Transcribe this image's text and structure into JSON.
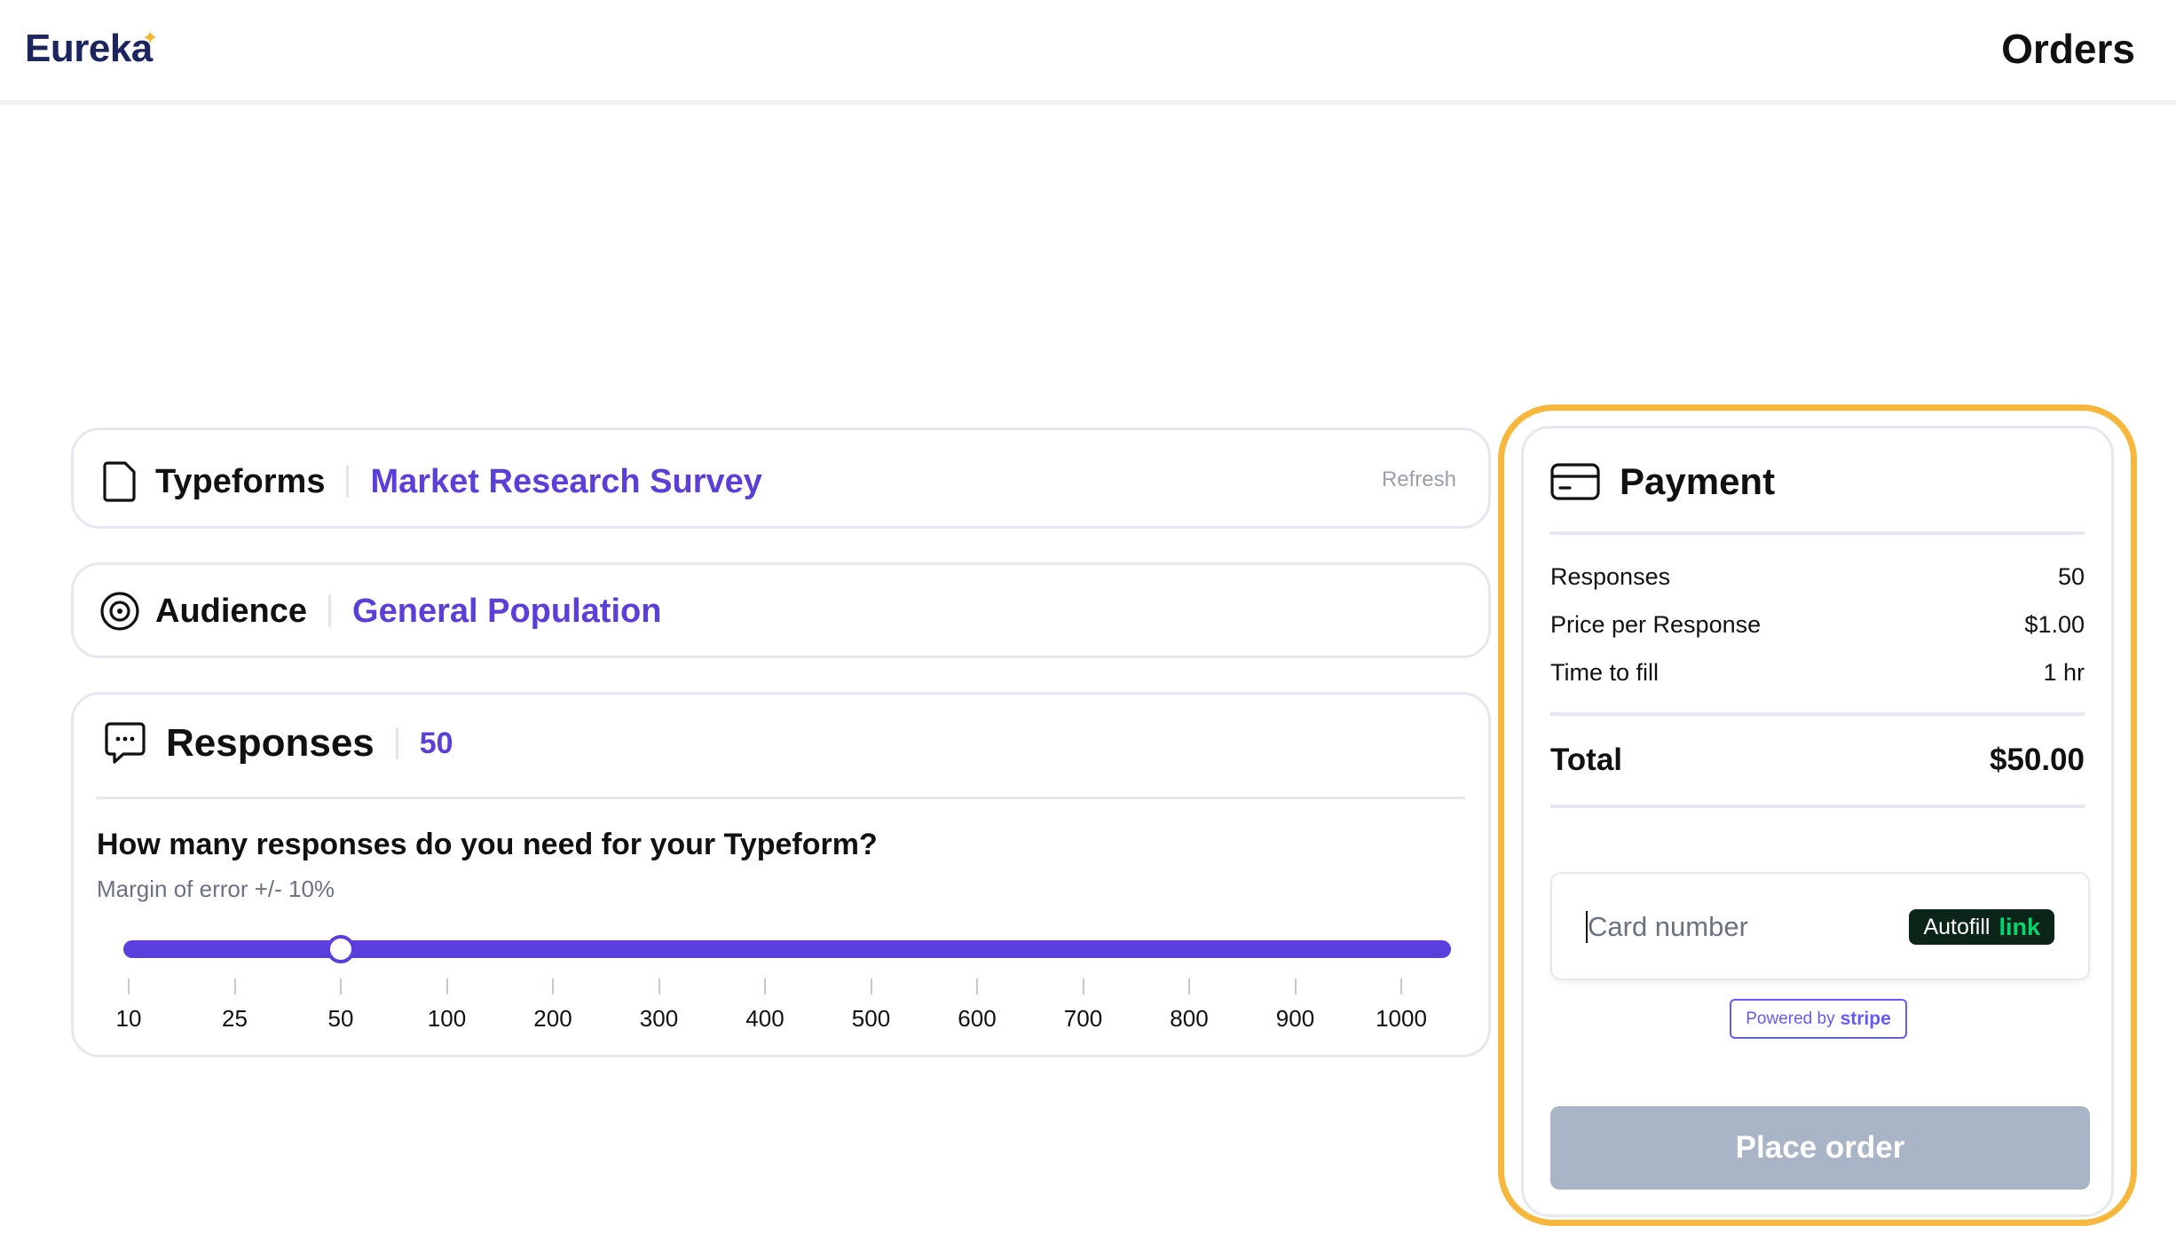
{
  "header": {
    "logo_text": "Eureka",
    "page_title": "Orders"
  },
  "typeforms": {
    "label": "Typeforms",
    "value": "Market Research Survey",
    "refresh_label": "Refresh"
  },
  "audience": {
    "label": "Audience",
    "value": "General Population"
  },
  "responses": {
    "label": "Responses",
    "value": "50",
    "question": "How many responses do you need for your Typeform?",
    "margin_note": "Margin of error +/- 10%",
    "slider": {
      "selected": 50,
      "selected_index": 2,
      "ticks": [
        "10",
        "25",
        "50",
        "100",
        "200",
        "300",
        "400",
        "500",
        "600",
        "700",
        "800",
        "900",
        "1000"
      ]
    }
  },
  "payment": {
    "title": "Payment",
    "rows": [
      {
        "label": "Responses",
        "value": "50"
      },
      {
        "label": "Price per Response",
        "value": "$1.00"
      },
      {
        "label": "Time to fill",
        "value": "1 hr"
      }
    ],
    "total_label": "Total",
    "total_value": "$50.00",
    "card_placeholder": "Card number",
    "autofill_label": "Autofill",
    "autofill_link": "link",
    "powered_by": "Powered by",
    "powered_brand": "stripe",
    "place_order_label": "Place order"
  },
  "colors": {
    "accent": "#5b3fdc",
    "highlight": "#f6b73c",
    "button_disabled": "#a9b4c6",
    "logo": "#1d2560"
  },
  "icons": {
    "typeforms": "document-icon",
    "audience": "target-icon",
    "responses": "chat-bubble-icon",
    "payment": "credit-card-icon"
  }
}
